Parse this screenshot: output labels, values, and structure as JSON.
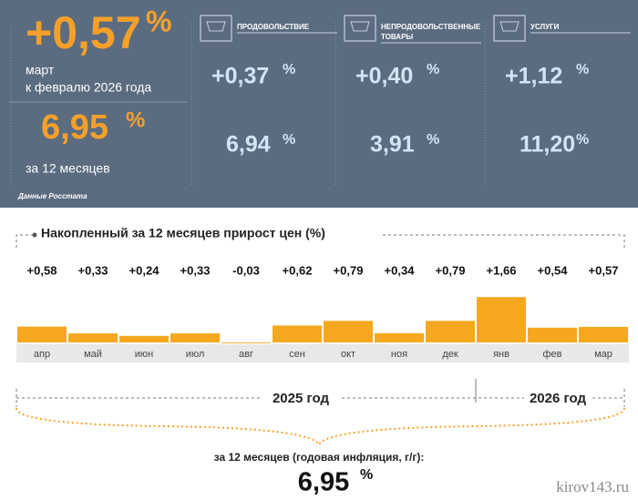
{
  "header": {
    "monthly_value": "+0,57",
    "percent": "%",
    "monthly_caption": [
      "март",
      "к февралю 2026 года"
    ],
    "annual_value": "6,95",
    "annual_caption": "за 12 месяцев",
    "source": "Данные Росстата"
  },
  "groups": [
    {
      "label": [
        "ПРОДОВОЛЬСТВИЕ"
      ],
      "monthly": "+0,37",
      "annual": "6,94"
    },
    {
      "label": [
        "НЕПРОДОВОЛЬСТВЕННЫЕ",
        "ТОВАРЫ"
      ],
      "monthly": "+0,40",
      "annual": "3,91"
    },
    {
      "label": [
        "УСЛУГИ"
      ],
      "monthly": "+1,12",
      "annual": "11,20"
    }
  ],
  "chart_data": {
    "type": "bar",
    "title": "Накопленный за 12 месяцев прирост цен (%)",
    "categories": [
      "апр",
      "май",
      "июн",
      "июл",
      "авг",
      "сен",
      "окт",
      "ноя",
      "дек",
      "янв",
      "фев",
      "мар"
    ],
    "values": [
      0.58,
      0.33,
      0.24,
      0.33,
      -0.03,
      0.62,
      0.79,
      0.34,
      0.79,
      1.66,
      0.54,
      0.57
    ],
    "value_labels": [
      "+0,58",
      "+0,33",
      "+0,24",
      "+0,33",
      "-0,03",
      "+0,62",
      "+0,79",
      "+0,34",
      "+0,79",
      "+1,66",
      "+0,54",
      "+0,57"
    ],
    "color": "#f5a81f"
  },
  "footer": {
    "years": [
      "2025 год",
      "2026 год"
    ],
    "caption": "за 12 месяцев (годовая инфляция, г/г):",
    "value": "6,95",
    "watermark": "kirov143.ru"
  }
}
